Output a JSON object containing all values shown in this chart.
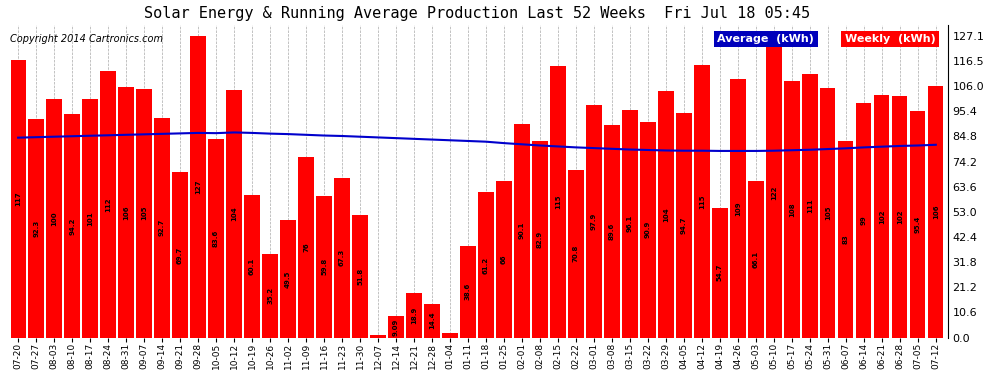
{
  "title": "Solar Energy & Running Average Production Last 52 Weeks  Fri Jul 18 05:45",
  "copyright": "Copyright 2014 Cartronics.com",
  "bar_color": "#ff0000",
  "avg_line_color": "#0000cc",
  "background_color": "#ffffff",
  "grid_color": "#aaaaaa",
  "yticks": [
    0.0,
    10.6,
    21.2,
    31.8,
    42.4,
    53.0,
    63.6,
    74.2,
    84.8,
    95.4,
    106.0,
    116.5,
    127.1
  ],
  "categories": [
    "07-20",
    "07-27",
    "08-03",
    "08-10",
    "08-17",
    "08-24",
    "08-31",
    "09-07",
    "09-14",
    "09-21",
    "09-28",
    "10-05",
    "10-12",
    "10-19",
    "10-26",
    "11-02",
    "11-09",
    "11-16",
    "11-23",
    "11-30",
    "12-07",
    "12-14",
    "12-21",
    "12-28",
    "01-04",
    "01-11",
    "01-18",
    "01-25",
    "02-01",
    "02-08",
    "02-15",
    "02-22",
    "03-01",
    "03-08",
    "03-15",
    "03-22",
    "03-29",
    "04-05",
    "04-12",
    "04-19",
    "04-26",
    "05-03",
    "05-10",
    "05-17",
    "05-24",
    "05-31",
    "06-07",
    "06-14",
    "06-21",
    "06-28",
    "07-05",
    "07-12"
  ],
  "values": [
    117.092,
    92.324,
    100.436,
    94.222,
    100.576,
    112.301,
    105.609,
    104.966,
    92.684,
    69.724,
    127.14,
    83.579,
    104.283,
    60.093,
    35.237,
    49.463,
    75.968,
    59.802,
    67.274,
    51.82,
    1.053,
    9.092,
    18.885,
    14.364,
    1.752,
    38.62,
    61.228,
    65.964,
    90.104,
    82.856,
    114.528,
    70.84,
    97.902,
    89.596,
    96.12,
    90.912,
    104.028,
    94.65,
    114.872,
    54.704,
    108.83,
    66.128,
    122.5,
    108.224,
    111.132,
    105.376,
    83.02,
    99.028,
    102.128,
    101.88,
    95.4,
    106.0
  ],
  "avg_values": [
    84.3,
    84.5,
    84.7,
    84.9,
    85.1,
    85.3,
    85.5,
    85.7,
    85.9,
    86.1,
    86.3,
    86.2,
    86.5,
    86.3,
    86.0,
    85.8,
    85.5,
    85.2,
    85.0,
    84.7,
    84.4,
    84.1,
    83.8,
    83.5,
    83.2,
    82.9,
    82.6,
    82.0,
    81.5,
    81.0,
    80.6,
    80.2,
    79.9,
    79.6,
    79.3,
    79.1,
    78.9,
    78.8,
    78.8,
    78.7,
    78.7,
    78.7,
    78.8,
    79.0,
    79.2,
    79.5,
    79.8,
    80.2,
    80.5,
    80.8,
    81.0,
    81.3
  ],
  "legend_avg_bg": "#0000ff",
  "legend_weekly_bg": "#ff0000",
  "legend_text_color": "#ffffff"
}
